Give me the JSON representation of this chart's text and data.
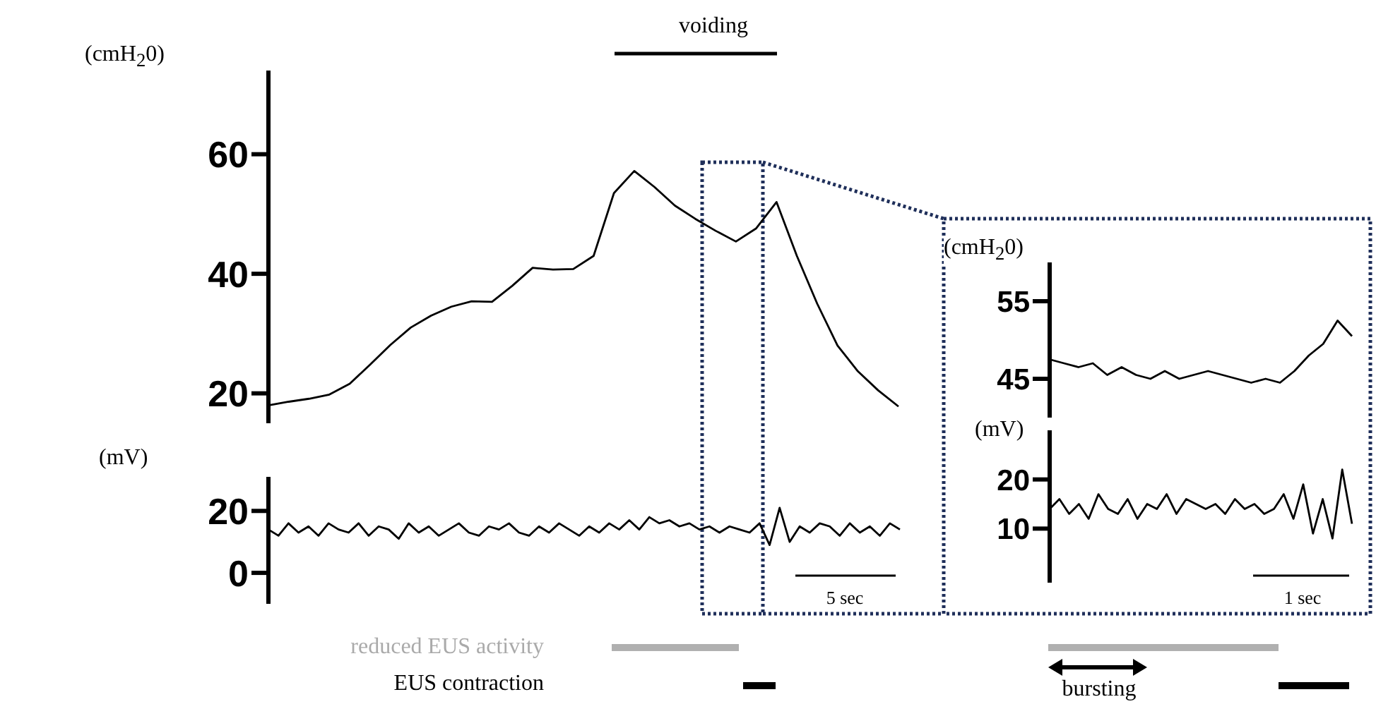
{
  "chart_data": [
    {
      "type": "line",
      "ylabel": "(cmH$_{2}$0)",
      "categories": [
        null,
        null,
        null,
        null,
        null,
        null,
        null,
        null,
        null,
        null,
        null,
        null,
        null,
        null,
        null,
        null,
        null,
        null,
        null,
        null,
        null,
        null,
        null,
        null,
        null,
        null,
        null,
        null,
        null,
        null,
        null,
        null
      ],
      "series": [
        {
          "color": "#000000",
          "values": [
            18,
            18.6,
            19.1,
            19.8,
            21.6,
            24.8,
            28.1,
            31,
            33,
            34.5,
            35.4,
            35.3,
            38,
            41,
            40.7,
            40.8,
            43,
            53.5,
            57.2,
            54.5,
            51.4,
            49.2,
            47.2,
            45.4,
            47.6,
            52,
            43,
            35,
            28,
            23.7,
            20.5,
            17.8
          ]
        }
      ],
      "ylim": [
        15,
        74
      ],
      "yticks": [
        20,
        40,
        60
      ],
      "tick_labels": "y",
      "annotations": [
        "voiding",
        "5 sec",
        "reduced EUS activity",
        "EUS contraction"
      ]
    },
    {
      "type": "line",
      "ylabel": "(mV)",
      "categories": [
        null,
        null,
        null,
        null,
        null,
        null,
        null,
        null,
        null,
        null,
        null,
        null,
        null,
        null,
        null,
        null,
        null,
        null,
        null,
        null,
        null,
        null,
        null,
        null,
        null,
        null,
        null,
        null,
        null,
        null,
        null,
        null,
        null,
        null,
        null,
        null,
        null,
        null,
        null,
        null,
        null,
        null,
        null,
        null,
        null,
        null,
        null,
        null,
        null,
        null,
        null,
        null,
        null,
        null,
        null,
        null,
        null,
        null,
        null,
        null,
        null,
        null,
        null,
        null
      ],
      "series": [
        {
          "color": "#000000",
          "values": [
            14,
            12,
            16,
            13,
            15,
            12,
            16,
            14,
            13,
            16,
            12,
            15,
            14,
            11,
            16,
            13,
            15,
            12,
            14,
            16,
            13,
            12,
            15,
            14,
            16,
            13,
            12,
            15,
            13,
            16,
            14,
            12,
            15,
            13,
            16,
            14,
            17,
            14,
            18,
            16,
            17,
            15,
            16,
            14,
            15,
            13,
            15,
            14,
            13,
            16,
            9,
            21,
            10,
            15,
            13,
            16,
            15,
            12,
            16,
            13,
            15,
            12,
            16,
            14
          ]
        }
      ],
      "ylim": [
        -10,
        31
      ],
      "yticks": [
        0,
        20
      ],
      "tick_labels": "y"
    },
    {
      "type": "line",
      "ylabel": "(cmH$_{2}$0)",
      "categories": [
        null,
        null,
        null,
        null,
        null,
        null,
        null,
        null,
        null,
        null,
        null,
        null,
        null,
        null,
        null,
        null,
        null,
        null,
        null,
        null,
        null,
        null
      ],
      "series": [
        {
          "color": "#000000",
          "values": [
            47.5,
            47,
            46.5,
            47,
            45.5,
            46.5,
            45.5,
            45,
            46,
            45,
            45.5,
            46,
            45.5,
            45,
            44.5,
            45,
            44.5,
            46,
            48,
            49.5,
            52.5,
            50.5
          ]
        }
      ],
      "ylim": [
        40,
        60
      ],
      "yticks": [
        45,
        55
      ],
      "tick_labels": "y"
    },
    {
      "type": "line",
      "ylabel": "(mV)",
      "categories": [
        null,
        null,
        null,
        null,
        null,
        null,
        null,
        null,
        null,
        null,
        null,
        null,
        null,
        null,
        null,
        null,
        null,
        null,
        null,
        null,
        null,
        null,
        null,
        null,
        null,
        null,
        null,
        null,
        null,
        null,
        null,
        null
      ],
      "series": [
        {
          "color": "#000000",
          "values": [
            14,
            16,
            13,
            15,
            12,
            17,
            14,
            13,
            16,
            12,
            15,
            14,
            17,
            13,
            16,
            15,
            14,
            15,
            13,
            16,
            14,
            15,
            13,
            14,
            17,
            12,
            19,
            9,
            16,
            8,
            22,
            11
          ]
        }
      ],
      "ylim": [
        -1,
        30
      ],
      "yticks": [
        10,
        20
      ],
      "tick_labels": "y",
      "annotations": [
        "1 sec",
        "bursting"
      ]
    }
  ]
}
